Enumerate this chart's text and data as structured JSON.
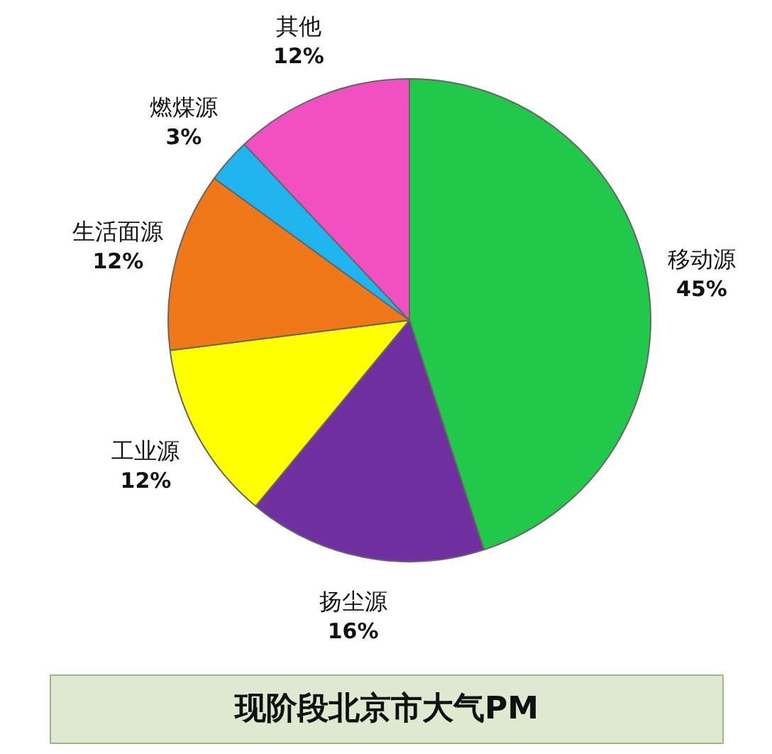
{
  "chart_data": {
    "type": "pie",
    "title": "现阶段北京市大气PM",
    "categories": [
      "移动源",
      "扬尘源",
      "工业源",
      "生活面源",
      "燃煤源",
      "其他"
    ],
    "values": [
      45,
      16,
      12,
      12,
      3,
      12
    ],
    "colors": [
      "#22c84a",
      "#7030a0",
      "#ffff00",
      "#f07818",
      "#20b4f0",
      "#f050c0"
    ],
    "value_labels": [
      "45%",
      "16%",
      "12%",
      "12%",
      "3%",
      "12%"
    ]
  }
}
